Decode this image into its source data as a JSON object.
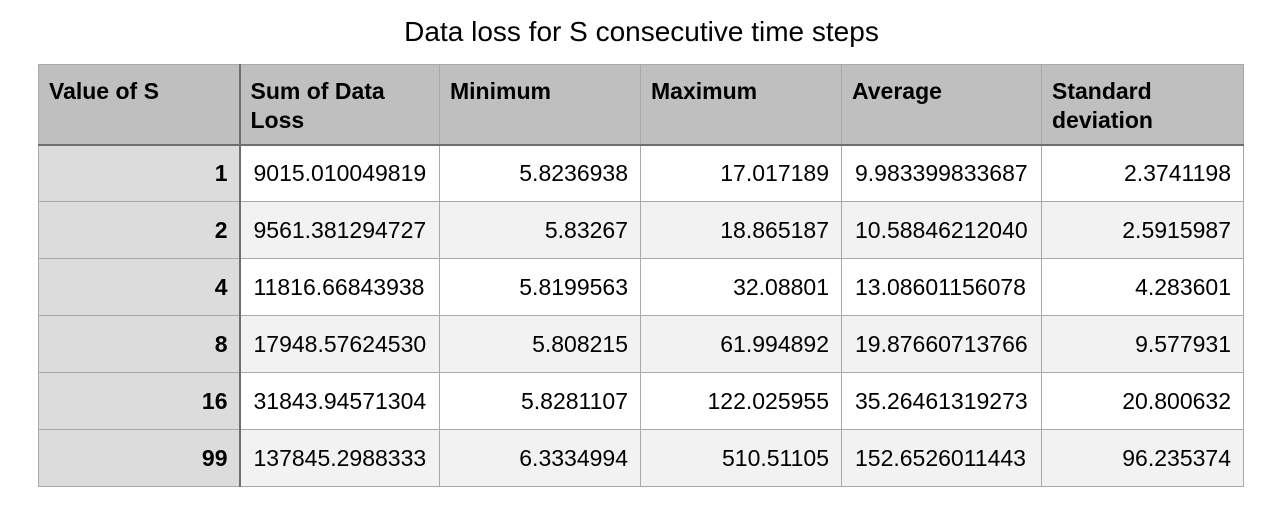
{
  "title": "Data loss for S consecutive time steps",
  "table": {
    "headers": [
      "Value of S",
      "Sum of Data Loss",
      "Minimum",
      "Maximum",
      "Average",
      "Standard deviation"
    ],
    "rows": [
      [
        "1",
        "9015.010049819",
        "5.8236938",
        "17.017189",
        "9.983399833687",
        "2.3741198"
      ],
      [
        "2",
        "9561.381294727",
        "5.83267",
        "18.865187",
        "10.58846212040",
        "2.5915987"
      ],
      [
        "4",
        "11816.66843938",
        "5.8199563",
        "32.08801",
        "13.08601156078",
        "4.283601"
      ],
      [
        "8",
        "17948.57624530",
        "5.808215",
        "61.994892",
        "19.87660713766",
        "9.577931"
      ],
      [
        "16",
        "31843.94571304",
        "5.8281107",
        "122.025955",
        "35.26461319273",
        "20.800632"
      ],
      [
        "99",
        "137845.2988333",
        "6.3334994",
        "510.51105",
        "152.6526011443",
        "96.235374"
      ]
    ]
  },
  "colors": {
    "header_bg": "#bfbfbf",
    "row_header_bg": "#dcdcdc",
    "alt_row_bg": "#f2f2f2",
    "grid_line": "#a9a9a9"
  }
}
